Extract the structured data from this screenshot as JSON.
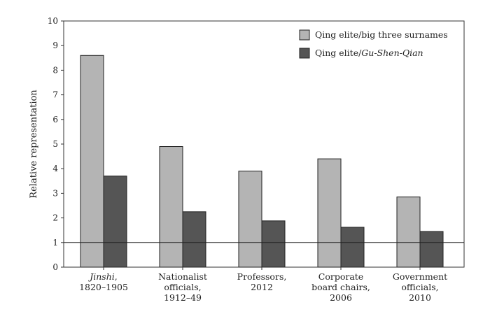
{
  "chart_data": {
    "type": "bar",
    "title": "",
    "xlabel": "",
    "ylabel": "Relative representation",
    "ylim": [
      0,
      10
    ],
    "yticks": [
      "0",
      "1",
      "2",
      "3",
      "4",
      "5",
      "6",
      "7",
      "8",
      "9",
      "10"
    ],
    "grid": false,
    "reference_line": 1,
    "legend_position": "top-right",
    "categories": [
      {
        "lines": [
          {
            "italic": "Jinshi",
            "rest": ","
          },
          {
            "text": "1820–1905"
          }
        ]
      },
      {
        "lines": [
          {
            "text": "Nationalist"
          },
          {
            "text": "officials,"
          },
          {
            "text": "1912–49"
          }
        ]
      },
      {
        "lines": [
          {
            "text": "Professors,"
          },
          {
            "text": "2012"
          }
        ]
      },
      {
        "lines": [
          {
            "text": "Corporate"
          },
          {
            "text": "board chairs,"
          },
          {
            "text": "2006"
          }
        ]
      },
      {
        "lines": [
          {
            "text": "Government"
          },
          {
            "text": "officials,"
          },
          {
            "text": "2010"
          }
        ]
      }
    ],
    "series": [
      {
        "name": "Qing elite/big three surnames",
        "name_parts": {
          "plain": "Qing elite/big three surnames",
          "italic": ""
        },
        "color": "#b4b4b4",
        "values": [
          8.6,
          4.9,
          3.9,
          4.4,
          2.85
        ]
      },
      {
        "name": "Qing elite/Gu-Shen-Qian",
        "name_parts": {
          "plain": "Qing elite/",
          "italic": "Gu-Shen-Qian"
        },
        "color": "#555555",
        "values": [
          3.7,
          2.25,
          1.88,
          1.62,
          1.45
        ]
      }
    ]
  }
}
